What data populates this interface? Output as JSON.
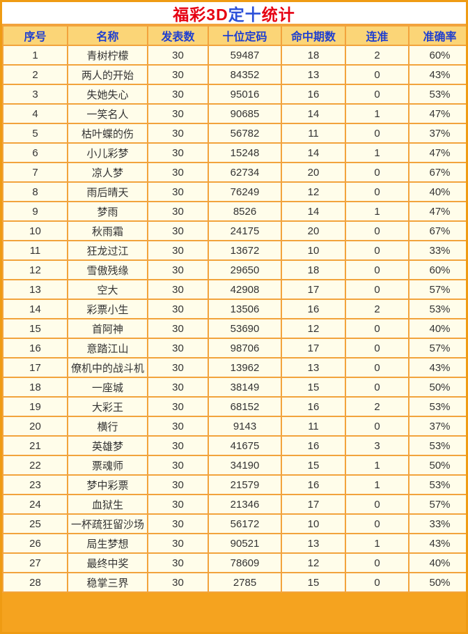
{
  "title": {
    "full": "福彩3D定十统计",
    "parts": [
      {
        "text": "福彩3D",
        "color": "#e60012"
      },
      {
        "text": "定十",
        "color": "#2b50d9"
      },
      {
        "text": "统计",
        "color": "#e60012"
      }
    ]
  },
  "colors": {
    "frame_orange": "#f5a31f",
    "grid_orange": "#f2a33c",
    "cell_background": "#fffdea",
    "header_background": "#fbd577",
    "header_text": "#1f3fd0",
    "body_text": "#333333",
    "title_background": "#ffffff",
    "title_red": "#e60012",
    "title_blue": "#2b50d9"
  },
  "chart_data": {
    "type": "table",
    "title": "福彩3D定十统计",
    "columns": [
      "序号",
      "名称",
      "发表数",
      "十位定码",
      "命中期数",
      "连准",
      "准确率"
    ],
    "rows": [
      {
        "no": "1",
        "name": "青树柠檬",
        "published": "30",
        "code": "59487",
        "hits": "18",
        "streak": "2",
        "accuracy": "60%"
      },
      {
        "no": "2",
        "name": "两人的开始",
        "published": "30",
        "code": "84352",
        "hits": "13",
        "streak": "0",
        "accuracy": "43%"
      },
      {
        "no": "3",
        "name": "失她失心",
        "published": "30",
        "code": "95016",
        "hits": "16",
        "streak": "0",
        "accuracy": "53%"
      },
      {
        "no": "4",
        "name": "一笑名人",
        "published": "30",
        "code": "90685",
        "hits": "14",
        "streak": "1",
        "accuracy": "47%"
      },
      {
        "no": "5",
        "name": "枯叶蝶的伤",
        "published": "30",
        "code": "56782",
        "hits": "11",
        "streak": "0",
        "accuracy": "37%"
      },
      {
        "no": "6",
        "name": "小儿彩梦",
        "published": "30",
        "code": "15248",
        "hits": "14",
        "streak": "1",
        "accuracy": "47%"
      },
      {
        "no": "7",
        "name": "凉人梦",
        "published": "30",
        "code": "62734",
        "hits": "20",
        "streak": "0",
        "accuracy": "67%"
      },
      {
        "no": "8",
        "name": "雨后晴天",
        "published": "30",
        "code": "76249",
        "hits": "12",
        "streak": "0",
        "accuracy": "40%"
      },
      {
        "no": "9",
        "name": "梦雨",
        "published": "30",
        "code": "8526",
        "hits": "14",
        "streak": "1",
        "accuracy": "47%"
      },
      {
        "no": "10",
        "name": "秋雨霜",
        "published": "30",
        "code": "24175",
        "hits": "20",
        "streak": "0",
        "accuracy": "67%"
      },
      {
        "no": "11",
        "name": "狂龙过江",
        "published": "30",
        "code": "13672",
        "hits": "10",
        "streak": "0",
        "accuracy": "33%"
      },
      {
        "no": "12",
        "name": "雪傲残缘",
        "published": "30",
        "code": "29650",
        "hits": "18",
        "streak": "0",
        "accuracy": "60%"
      },
      {
        "no": "13",
        "name": "空大",
        "published": "30",
        "code": "42908",
        "hits": "17",
        "streak": "0",
        "accuracy": "57%"
      },
      {
        "no": "14",
        "name": "彩票小生",
        "published": "30",
        "code": "13506",
        "hits": "16",
        "streak": "2",
        "accuracy": "53%"
      },
      {
        "no": "15",
        "name": "首阿神",
        "published": "30",
        "code": "53690",
        "hits": "12",
        "streak": "0",
        "accuracy": "40%"
      },
      {
        "no": "16",
        "name": "意踏江山",
        "published": "30",
        "code": "98706",
        "hits": "17",
        "streak": "0",
        "accuracy": "57%"
      },
      {
        "no": "17",
        "name": "僚机中的战斗机",
        "published": "30",
        "code": "13962",
        "hits": "13",
        "streak": "0",
        "accuracy": "43%"
      },
      {
        "no": "18",
        "name": "一座城",
        "published": "30",
        "code": "38149",
        "hits": "15",
        "streak": "0",
        "accuracy": "50%"
      },
      {
        "no": "19",
        "name": "大彩王",
        "published": "30",
        "code": "68152",
        "hits": "16",
        "streak": "2",
        "accuracy": "53%"
      },
      {
        "no": "20",
        "name": "横行",
        "published": "30",
        "code": "9143",
        "hits": "11",
        "streak": "0",
        "accuracy": "37%"
      },
      {
        "no": "21",
        "name": "英雄梦",
        "published": "30",
        "code": "41675",
        "hits": "16",
        "streak": "3",
        "accuracy": "53%"
      },
      {
        "no": "22",
        "name": "票魂师",
        "published": "30",
        "code": "34190",
        "hits": "15",
        "streak": "1",
        "accuracy": "50%"
      },
      {
        "no": "23",
        "name": "梦中彩票",
        "published": "30",
        "code": "21579",
        "hits": "16",
        "streak": "1",
        "accuracy": "53%"
      },
      {
        "no": "24",
        "name": "血狱生",
        "published": "30",
        "code": "21346",
        "hits": "17",
        "streak": "0",
        "accuracy": "57%"
      },
      {
        "no": "25",
        "name": "一杯疏狂留沙场",
        "published": "30",
        "code": "56172",
        "hits": "10",
        "streak": "0",
        "accuracy": "33%"
      },
      {
        "no": "26",
        "name": "局生梦想",
        "published": "30",
        "code": "90521",
        "hits": "13",
        "streak": "1",
        "accuracy": "43%"
      },
      {
        "no": "27",
        "name": "最终中奖",
        "published": "30",
        "code": "78609",
        "hits": "12",
        "streak": "0",
        "accuracy": "40%"
      },
      {
        "no": "28",
        "name": "稳掌三界",
        "published": "30",
        "code": "2785",
        "hits": "15",
        "streak": "0",
        "accuracy": "50%"
      }
    ]
  }
}
